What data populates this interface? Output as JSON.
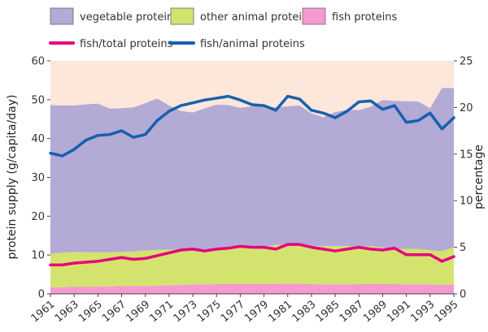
{
  "chart_data": {
    "type": "area",
    "title": "",
    "xlabel": "",
    "ylabel": "protein supply (g/capita/day)",
    "y2label": "percentage",
    "ylim": [
      0,
      60
    ],
    "y2lim": [
      0,
      25
    ],
    "yticks": [
      "0",
      "10",
      "20",
      "30",
      "40",
      "50",
      "60"
    ],
    "y2ticks": [
      "0",
      "5",
      "10",
      "15",
      "20",
      "25"
    ],
    "xticks": [
      "1961",
      "1963",
      "1965",
      "1967",
      "1969",
      "1971",
      "1973",
      "1975",
      "1977",
      "1979",
      "1981",
      "1983",
      "1985",
      "1987",
      "1989",
      "1991",
      "1993",
      "1995"
    ],
    "x": [
      1961,
      1962,
      1963,
      1964,
      1965,
      1966,
      1967,
      1968,
      1969,
      1970,
      1971,
      1972,
      1973,
      1974,
      1975,
      1976,
      1977,
      1978,
      1979,
      1980,
      1981,
      1982,
      1983,
      1984,
      1985,
      1986,
      1987,
      1988,
      1989,
      1990,
      1991,
      1992,
      1993,
      1994,
      1995
    ],
    "legend_position": "top",
    "stacked_series": [
      {
        "name": "fish proteins",
        "axis": "left",
        "color": "#f59ad0",
        "values": [
          1.7,
          1.7,
          1.8,
          1.8,
          1.9,
          1.9,
          2.0,
          2.0,
          2.0,
          2.1,
          2.2,
          2.3,
          2.4,
          2.4,
          2.5,
          2.5,
          2.5,
          2.5,
          2.5,
          2.5,
          2.6,
          2.6,
          2.5,
          2.4,
          2.4,
          2.4,
          2.5,
          2.5,
          2.5,
          2.5,
          2.4,
          2.4,
          2.4,
          2.3,
          2.3
        ]
      },
      {
        "name": "other animal proteins",
        "axis": "left",
        "color": "#d4e36e",
        "values": [
          8.6,
          8.9,
          9.0,
          8.9,
          8.8,
          8.8,
          8.8,
          8.9,
          9.2,
          9.2,
          9.2,
          9.2,
          9.1,
          9.0,
          9.0,
          9.3,
          9.5,
          9.5,
          9.5,
          10.2,
          9.8,
          9.7,
          9.8,
          9.9,
          9.9,
          9.9,
          9.6,
          9.8,
          9.4,
          9.0,
          9.2,
          9.2,
          8.8,
          8.7,
          9.7
        ]
      },
      {
        "name": "vegetable proteins",
        "axis": "left",
        "color": "#b3aad6",
        "values": [
          38.3,
          37.9,
          37.7,
          38.1,
          38.3,
          37.0,
          37.0,
          37.1,
          37.9,
          39.0,
          37.1,
          35.6,
          35.2,
          36.4,
          37.2,
          36.8,
          35.9,
          36.3,
          36.4,
          35.3,
          35.9,
          36.2,
          34.2,
          33.2,
          34.5,
          35.1,
          35.2,
          35.9,
          38.0,
          38.2,
          38.0,
          37.9,
          36.6,
          42.0,
          41.0
        ]
      }
    ],
    "line_series": [
      {
        "name": "fish/total proteins",
        "axis": "right",
        "color": "#e6007e",
        "values": [
          3.1,
          3.1,
          3.3,
          3.4,
          3.5,
          3.7,
          3.9,
          3.7,
          3.8,
          4.1,
          4.4,
          4.7,
          4.8,
          4.6,
          4.8,
          4.9,
          5.1,
          5.0,
          5.0,
          4.8,
          5.3,
          5.3,
          5.0,
          4.8,
          4.6,
          4.8,
          5.0,
          4.8,
          4.7,
          4.9,
          4.2,
          4.2,
          4.2,
          3.5,
          4.0
        ]
      },
      {
        "name": "fish/animal proteins",
        "axis": "right",
        "color": "#1660b0",
        "values": [
          15.1,
          14.8,
          15.5,
          16.5,
          17.0,
          17.1,
          17.5,
          16.8,
          17.1,
          18.6,
          19.6,
          20.2,
          20.5,
          20.8,
          21.0,
          21.2,
          20.8,
          20.3,
          20.2,
          19.7,
          21.2,
          20.9,
          19.7,
          19.4,
          18.9,
          19.6,
          20.6,
          20.7,
          19.8,
          20.2,
          18.4,
          18.6,
          19.4,
          17.7,
          18.9
        ]
      }
    ],
    "legend": [
      {
        "label": "vegetable proteins",
        "kind": "box",
        "color": "#b3aad6"
      },
      {
        "label": "other animal proteins",
        "kind": "box",
        "color": "#d4e36e"
      },
      {
        "label": "fish proteins",
        "kind": "box",
        "color": "#f59ad0"
      },
      {
        "label": "fish/total proteins",
        "kind": "line",
        "color": "#e6007e"
      },
      {
        "label": "fish/animal proteins",
        "kind": "line",
        "color": "#1660b0"
      }
    ],
    "background_color": "#fde6da"
  }
}
